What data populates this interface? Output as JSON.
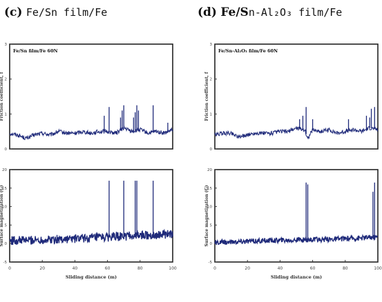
{
  "panels": {
    "c": {
      "letter": "(c)",
      "title": "Fe/Sn film/Fe"
    },
    "d": {
      "letter": "(d)",
      "title_bold": "Fe/S",
      "title_rest": "n-Al₂O₃ film/Fe"
    }
  },
  "chart_data": [
    {
      "type": "line",
      "panel": "c-top",
      "title": "Fe/Sn film/Fe 60N",
      "xlabel": "",
      "ylabel": "Friction coefficient, f",
      "xlim": [
        0,
        100
      ],
      "ylim": [
        0,
        3
      ],
      "yticks": [
        0,
        1,
        2,
        3
      ],
      "color": "#1f2a7a",
      "baseline": [
        [
          0,
          0.45
        ],
        [
          5,
          0.4
        ],
        [
          10,
          0.3
        ],
        [
          15,
          0.4
        ],
        [
          20,
          0.45
        ],
        [
          25,
          0.4
        ],
        [
          30,
          0.5
        ],
        [
          35,
          0.45
        ],
        [
          40,
          0.45
        ],
        [
          45,
          0.5
        ],
        [
          50,
          0.45
        ],
        [
          55,
          0.5
        ],
        [
          60,
          0.5
        ],
        [
          65,
          0.45
        ],
        [
          70,
          0.6
        ],
        [
          75,
          0.5
        ],
        [
          80,
          0.55
        ],
        [
          85,
          0.45
        ],
        [
          90,
          0.5
        ],
        [
          95,
          0.45
        ],
        [
          100,
          0.55
        ]
      ],
      "spikes": [
        [
          58,
          0.95
        ],
        [
          61,
          1.2
        ],
        [
          68,
          0.9
        ],
        [
          69,
          1.1
        ],
        [
          70,
          1.25
        ],
        [
          76,
          0.9
        ],
        [
          77,
          1.05
        ],
        [
          78,
          1.25
        ],
        [
          79,
          1.1
        ],
        [
          88,
          1.25
        ],
        [
          97,
          0.75
        ]
      ]
    },
    {
      "type": "line",
      "panel": "c-bottom",
      "xlabel": "Sliding distance (m)",
      "ylabel": "Surface magnetization (G)",
      "xlim": [
        0,
        100
      ],
      "ylim": [
        -5,
        20
      ],
      "xticks": [
        0,
        20,
        40,
        60,
        80,
        100
      ],
      "yticks": [
        -5,
        0,
        5,
        10,
        15,
        20
      ],
      "color": "#1f2a7a",
      "baseline": [
        [
          0,
          0.8
        ],
        [
          20,
          1.0
        ],
        [
          40,
          1.3
        ],
        [
          60,
          1.7
        ],
        [
          80,
          2.2
        ],
        [
          100,
          2.5
        ]
      ],
      "band": 1.2,
      "spikes": [
        [
          61,
          17
        ],
        [
          70,
          17
        ],
        [
          77,
          17
        ],
        [
          78,
          17
        ],
        [
          88,
          17
        ]
      ]
    },
    {
      "type": "line",
      "panel": "d-top",
      "title": "Fe/Sn-Al₂O₃ film/Fe 60N",
      "xlabel": "",
      "ylabel": "Friction coefficient, f",
      "xlim": [
        0,
        100
      ],
      "ylim": [
        0,
        3
      ],
      "yticks": [
        0,
        1,
        2,
        3
      ],
      "color": "#1f2a7a",
      "baseline": [
        [
          0,
          0.4
        ],
        [
          5,
          0.45
        ],
        [
          10,
          0.45
        ],
        [
          15,
          0.35
        ],
        [
          20,
          0.4
        ],
        [
          25,
          0.45
        ],
        [
          30,
          0.45
        ],
        [
          35,
          0.45
        ],
        [
          40,
          0.5
        ],
        [
          45,
          0.5
        ],
        [
          50,
          0.6
        ],
        [
          55,
          0.55
        ],
        [
          57,
          0.3
        ],
        [
          60,
          0.55
        ],
        [
          65,
          0.5
        ],
        [
          70,
          0.55
        ],
        [
          75,
          0.45
        ],
        [
          80,
          0.5
        ],
        [
          85,
          0.55
        ],
        [
          90,
          0.5
        ],
        [
          95,
          0.6
        ],
        [
          100,
          0.55
        ]
      ],
      "spikes": [
        [
          52,
          0.85
        ],
        [
          54,
          0.95
        ],
        [
          56,
          1.2
        ],
        [
          60,
          0.85
        ],
        [
          82,
          0.85
        ],
        [
          93,
          0.95
        ],
        [
          95,
          0.9
        ],
        [
          96,
          1.15
        ],
        [
          98,
          1.2
        ]
      ]
    },
    {
      "type": "line",
      "panel": "d-bottom",
      "xlabel": "Sliding distance (m)",
      "ylabel": "Surface magnetization (G)",
      "xlim": [
        0,
        100
      ],
      "ylim": [
        -5,
        20
      ],
      "xticks": [
        0,
        20,
        40,
        60,
        80,
        100
      ],
      "yticks": [
        -5,
        0,
        5,
        10,
        15,
        20
      ],
      "color": "#1f2a7a",
      "baseline": [
        [
          0,
          0.2
        ],
        [
          20,
          0.6
        ],
        [
          40,
          0.9
        ],
        [
          55,
          1.0
        ],
        [
          60,
          1.0
        ],
        [
          80,
          1.3
        ],
        [
          100,
          1.8
        ]
      ],
      "band": 0.7,
      "spikes": [
        [
          56,
          16.5
        ],
        [
          57,
          16
        ],
        [
          97,
          14
        ],
        [
          98,
          16.5
        ]
      ]
    }
  ]
}
